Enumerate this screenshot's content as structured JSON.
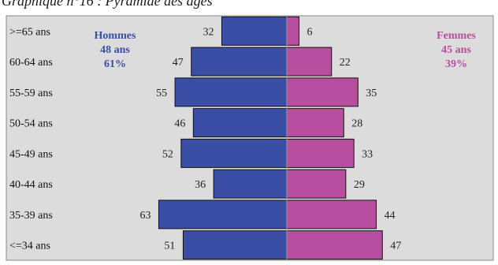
{
  "chart_data": {
    "type": "bar",
    "title": "Graphique n°16 : Pyramide des âges",
    "categories": [
      ">=65 ans",
      "60-64 ans",
      "55-59 ans",
      "50-54 ans",
      "45-49 ans",
      "40-44 ans",
      "35-39 ans",
      "<=34 ans"
    ],
    "series": [
      {
        "name": "Hommes",
        "values": [
          32,
          47,
          55,
          46,
          52,
          36,
          63,
          51
        ],
        "color": "#3a4ea5"
      },
      {
        "name": "Femmes",
        "values": [
          6,
          22,
          35,
          28,
          33,
          29,
          44,
          47
        ],
        "color": "#b84e9e"
      }
    ],
    "orientation": "horizontal-pyramid",
    "legend": {
      "left": {
        "lines": [
          "Hommes",
          "48 ans",
          "61%"
        ],
        "color": "#3a4ea5"
      },
      "right": {
        "lines": [
          "Femmes",
          "45 ans",
          "39%"
        ],
        "color": "#b84e9e"
      }
    },
    "grid": false,
    "plot_background": "#dcdcdc"
  }
}
